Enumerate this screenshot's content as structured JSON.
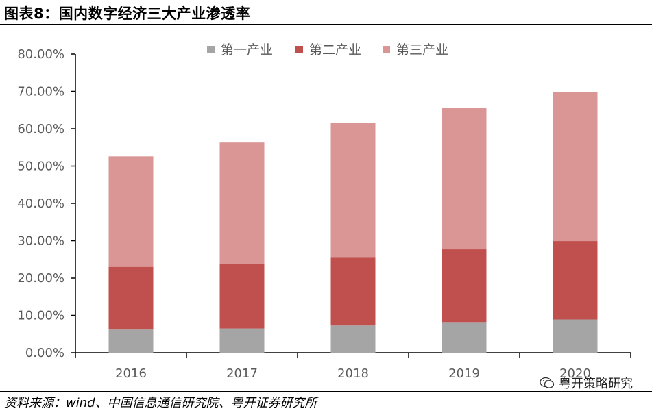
{
  "header": {
    "title": "图表8：国内数字经济三大产业渗透率"
  },
  "footer": {
    "source": "资料来源：wind、中国信息通信研究院、粤开证券研究所"
  },
  "watermark": {
    "text": "粤开策略研究",
    "icon": "wechat-icon"
  },
  "colors": {
    "primary": "#A5A5A5",
    "secondary": "#C0504D",
    "tertiary": "#D99694",
    "axis": "#000000",
    "label": "#595959"
  },
  "chart_data": {
    "type": "bar",
    "stacked": true,
    "categories": [
      "2016",
      "2017",
      "2018",
      "2019",
      "2020"
    ],
    "series": [
      {
        "name": "第一产业",
        "values": [
          6.2,
          6.5,
          7.3,
          8.2,
          8.9
        ]
      },
      {
        "name": "第二产业",
        "values": [
          16.8,
          17.2,
          18.3,
          19.5,
          21.0
        ]
      },
      {
        "name": "第三产业",
        "values": [
          29.6,
          32.6,
          35.9,
          37.8,
          40.0
        ]
      }
    ],
    "ylim": [
      0,
      80
    ],
    "yticks": [
      "0.00%",
      "10.00%",
      "20.00%",
      "30.00%",
      "40.00%",
      "50.00%",
      "60.00%",
      "70.00%",
      "80.00%"
    ],
    "legend": "top-center",
    "grid": false
  }
}
